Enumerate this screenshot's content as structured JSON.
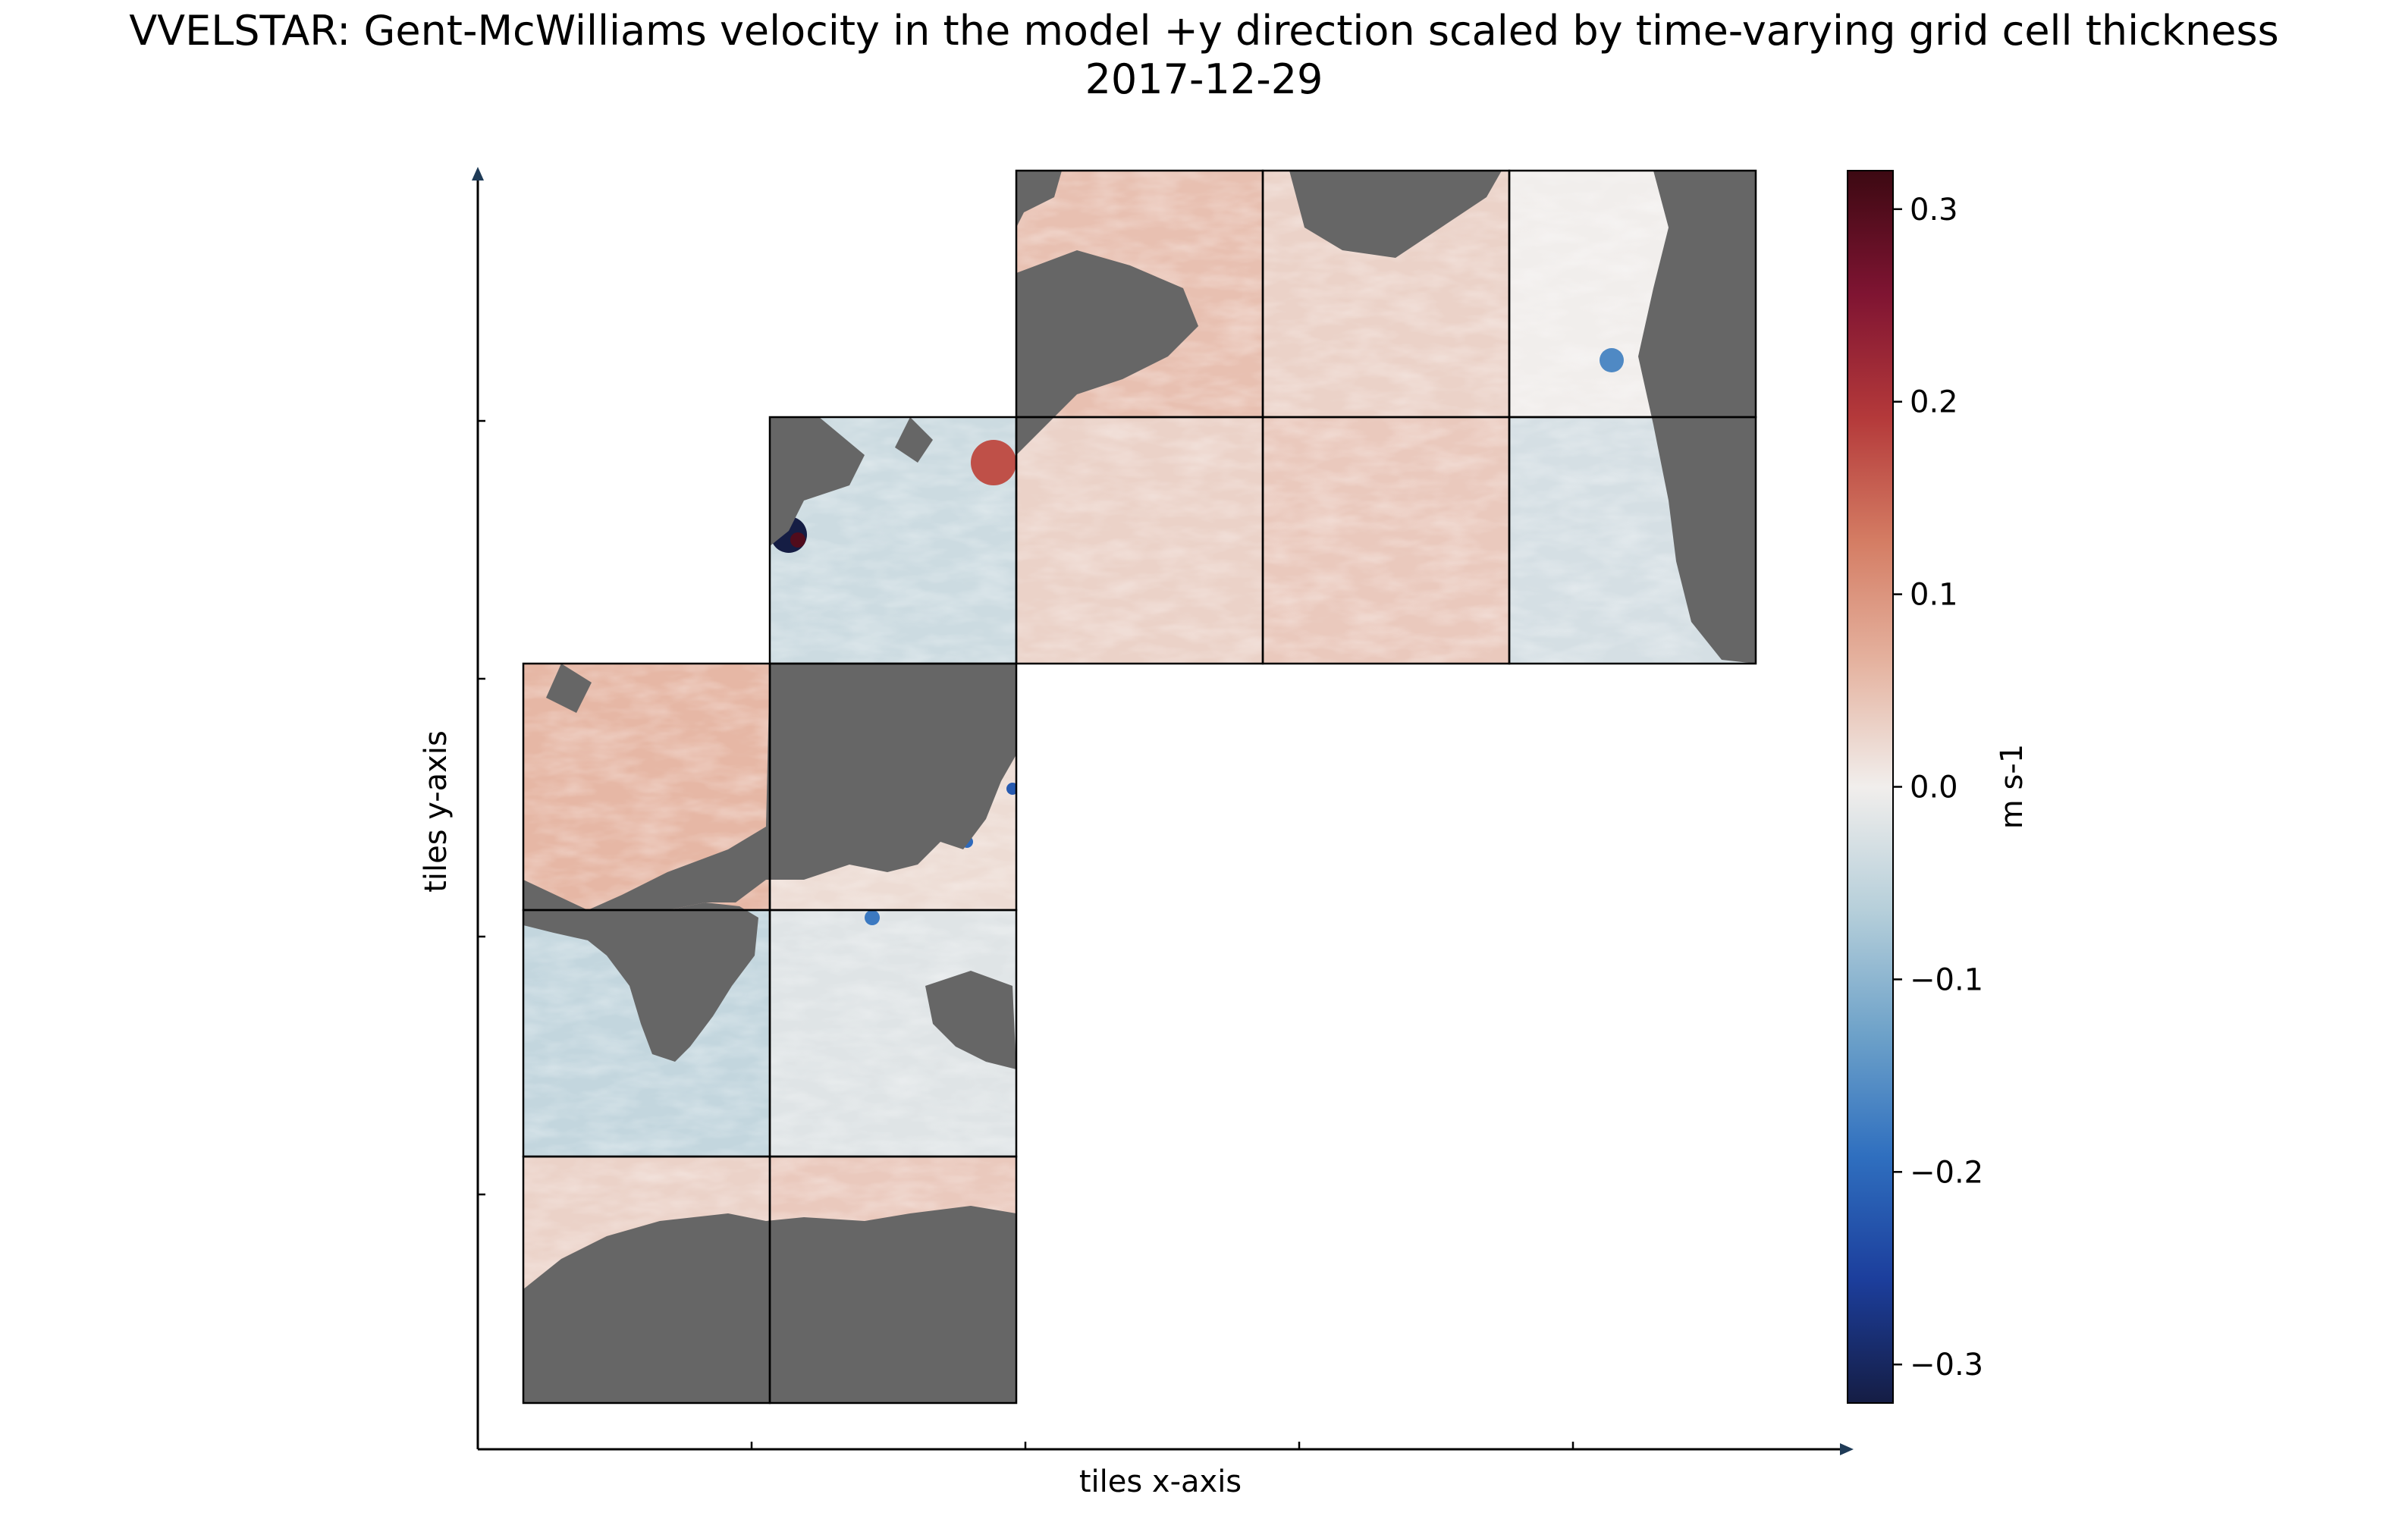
{
  "title_line1": "VVELSTAR: Gent-McWilliams velocity in the model +y direction scaled by time-varying grid cell thickness",
  "title_line2": "2017-12-29",
  "chart_data": {
    "type": "heatmap",
    "title": "VVELSTAR: Gent-McWilliams velocity in the model +y direction scaled by time-varying grid cell thickness",
    "subtitle": "2017-12-29",
    "xlabel": "tiles x-axis",
    "ylabel": "tiles y-axis",
    "colorbar": {
      "label": "m s-1",
      "range": [
        -0.32,
        0.32
      ],
      "ticks": [
        0.3,
        0.2,
        0.1,
        0.0,
        -0.1,
        -0.2,
        -0.3
      ],
      "tick_labels": [
        "0.3",
        "0.2",
        "0.1",
        "0.0",
        "−0.1",
        "−0.2",
        "−0.3"
      ],
      "colormap": "balance (dark blue → white → dark red)",
      "stops": [
        "#151d44",
        "#1c3e9c",
        "#2f6fbf",
        "#6ea2c9",
        "#b6cfda",
        "#f1eeec",
        "#e5b3a0",
        "#d47c63",
        "#b4393a",
        "#7f1432",
        "#3c0912"
      ]
    },
    "land_color": "#666666",
    "tile_layout": "13-tile LLC grid: 2 columns x 3 rows on the left, 1 tile at center, 3 columns x 2 rows at upper right",
    "tiles": [
      {
        "col": 0,
        "row": 0,
        "mean_velocity": 0.03
      },
      {
        "col": 1,
        "row": 0,
        "mean_velocity": 0.04
      },
      {
        "col": 0,
        "row": 1,
        "mean_velocity": -0.05
      },
      {
        "col": 1,
        "row": 1,
        "mean_velocity": -0.02
      },
      {
        "col": 0,
        "row": 2,
        "mean_velocity": 0.06
      },
      {
        "col": 1,
        "row": 2,
        "mean_velocity": 0.02
      },
      {
        "col": 1,
        "row": 3,
        "mean_velocity": -0.04
      },
      {
        "col": 2,
        "row": 3,
        "mean_velocity": 0.03
      },
      {
        "col": 3,
        "row": 3,
        "mean_velocity": 0.04
      },
      {
        "col": 4,
        "row": 3,
        "mean_velocity": -0.03
      },
      {
        "col": 2,
        "row": 4,
        "mean_velocity": 0.05
      },
      {
        "col": 3,
        "row": 4,
        "mean_velocity": 0.03
      },
      {
        "col": 4,
        "row": 4,
        "mean_velocity": 0.0
      }
    ]
  }
}
